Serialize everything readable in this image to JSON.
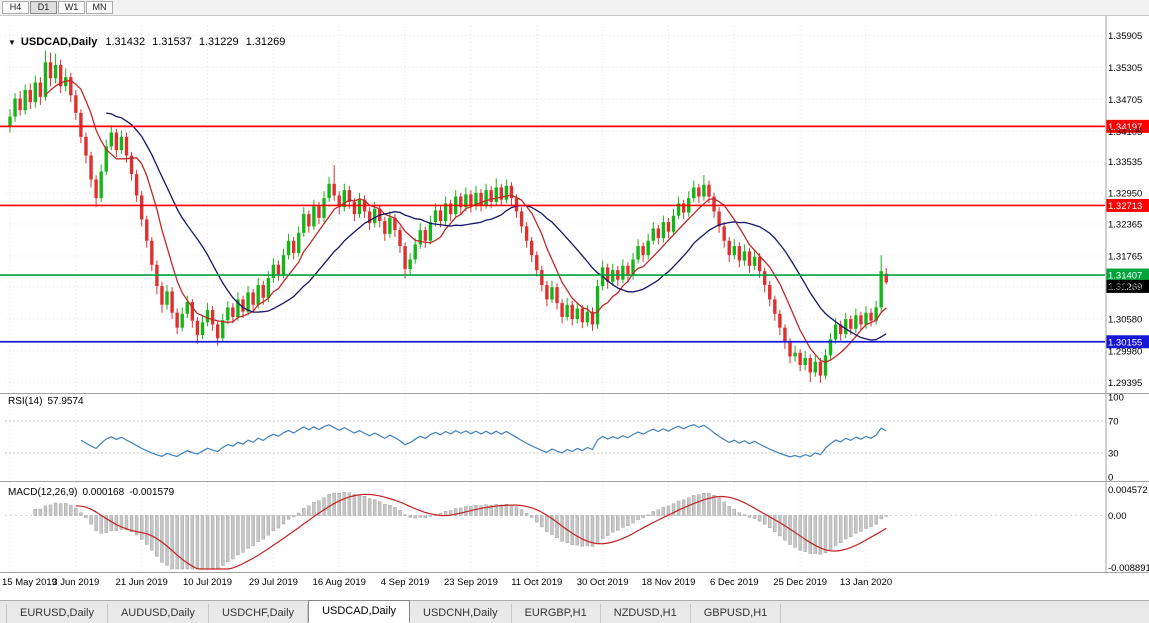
{
  "toolbar": {
    "timeframes": [
      {
        "label": "H4",
        "active": false
      },
      {
        "label": "D1",
        "active": true
      },
      {
        "label": "W1",
        "active": false
      },
      {
        "label": "MN",
        "active": false
      }
    ]
  },
  "title": {
    "symbol": "USDCAD,Daily",
    "open": "1.31432",
    "high": "1.31537",
    "low": "1.31229",
    "close": "1.31269"
  },
  "chart_data": {
    "type": "candlestick",
    "symbol": "USDCAD",
    "timeframe": "Daily",
    "y_range": [
      1.2925,
      1.3608
    ],
    "y_axis": {
      "ticks": [
        "1.35905",
        "1.35305",
        "1.34705",
        "1.34105",
        "1.33535",
        "1.32950",
        "1.32365",
        "1.31765",
        "1.31180",
        "1.30580",
        "1.29980",
        "1.29395"
      ]
    },
    "x_axis": {
      "labels": [
        "15 May 2019",
        "3 Jun 2019",
        "21 Jun 2019",
        "10 Jul 2019",
        "29 Jul 2019",
        "16 Aug 2019",
        "4 Sep 2019",
        "23 Sep 2019",
        "11 Oct 2019",
        "30 Oct 2019",
        "18 Nov 2019",
        "6 Dec 2019",
        "25 Dec 2019",
        "13 Jan 2020"
      ],
      "bars_per_label": 13
    },
    "colors": {
      "up": "#17B417",
      "down": "#DF3030",
      "grid": "#E2E2E2",
      "ma_fast": "#C22828",
      "ma_slow": "#16166B",
      "axis_text": "#000000",
      "background": "#FFFFFF"
    },
    "hlines": [
      {
        "price": 1.34197,
        "label": "1.34197",
        "color": "#FF0000"
      },
      {
        "price": 1.32713,
        "label": "1.32713",
        "color": "#FF0000"
      },
      {
        "price": 1.31407,
        "label": "1.31407",
        "color": "#00A33C"
      },
      {
        "price": 1.30155,
        "label": "1.30155",
        "color": "#1515D8"
      }
    ],
    "last_price": {
      "price": 1.31269,
      "label": "1.31269",
      "bg": "#000000",
      "fg": "#FFFFFF"
    },
    "indicators": {
      "rsi": {
        "label": "RSI(14)",
        "value": "57.9574",
        "color": "#4080C0",
        "axis_labels": [
          "100",
          "70",
          "30",
          "0"
        ],
        "level_lines": [
          70,
          30
        ]
      },
      "macd": {
        "label": "MACD(12,26,9)",
        "value_main": "0.000168",
        "value_signal": "-0.001579",
        "axis_labels": [
          "0.004572",
          "0.00",
          "-0.008891"
        ],
        "range": [
          -0.008891,
          0.004572
        ],
        "hist_color": "#C6C6C6",
        "hist_edge": "#9A9A9A",
        "signal_color": "#C42020"
      }
    },
    "candles": [
      [
        1.342,
        1.3452,
        1.3408,
        1.3438
      ],
      [
        1.3438,
        1.3482,
        1.3428,
        1.3472
      ],
      [
        1.3472,
        1.3486,
        1.344,
        1.345
      ],
      [
        1.345,
        1.3498,
        1.3442,
        1.3488
      ],
      [
        1.3488,
        1.35,
        1.3452,
        1.3465
      ],
      [
        1.3465,
        1.3515,
        1.3455,
        1.3502
      ],
      [
        1.3502,
        1.3512,
        1.346,
        1.3475
      ],
      [
        1.3475,
        1.3562,
        1.3468,
        1.354
      ],
      [
        1.354,
        1.3558,
        1.3495,
        1.351
      ],
      [
        1.351,
        1.3556,
        1.35,
        1.3535
      ],
      [
        1.3535,
        1.3545,
        1.3482,
        1.3495
      ],
      [
        1.3495,
        1.3528,
        1.3485,
        1.3512
      ],
      [
        1.3512,
        1.352,
        1.3465,
        1.3478
      ],
      [
        1.3478,
        1.3488,
        1.3432,
        1.3445
      ],
      [
        1.3445,
        1.3452,
        1.3388,
        1.34
      ],
      [
        1.34,
        1.3408,
        1.335,
        1.3365
      ],
      [
        1.3365,
        1.3372,
        1.3305,
        1.332
      ],
      [
        1.332,
        1.3328,
        1.3268,
        1.3285
      ],
      [
        1.3285,
        1.3348,
        1.3278,
        1.3335
      ],
      [
        1.3335,
        1.3395,
        1.3328,
        1.3382
      ],
      [
        1.3382,
        1.3422,
        1.3375,
        1.3408
      ],
      [
        1.3408,
        1.3415,
        1.3362,
        1.3375
      ],
      [
        1.3375,
        1.3412,
        1.3368,
        1.34
      ],
      [
        1.34,
        1.3408,
        1.3352,
        1.3365
      ],
      [
        1.3365,
        1.3372,
        1.3318,
        1.333
      ],
      [
        1.333,
        1.3338,
        1.3278,
        1.329
      ],
      [
        1.329,
        1.3298,
        1.3232,
        1.3245
      ],
      [
        1.3245,
        1.3252,
        1.3192,
        1.3205
      ],
      [
        1.3205,
        1.3212,
        1.3148,
        1.316
      ],
      [
        1.316,
        1.3168,
        1.3105,
        1.312
      ],
      [
        1.312,
        1.3128,
        1.307,
        1.3085
      ],
      [
        1.3085,
        1.3122,
        1.3076,
        1.311
      ],
      [
        1.311,
        1.3118,
        1.3058,
        1.307
      ],
      [
        1.307,
        1.3078,
        1.303,
        1.3042
      ],
      [
        1.3042,
        1.308,
        1.3035,
        1.3068
      ],
      [
        1.3068,
        1.3102,
        1.306,
        1.309
      ],
      [
        1.309,
        1.3096,
        1.3042,
        1.3055
      ],
      [
        1.3055,
        1.3062,
        1.3012,
        1.3028
      ],
      [
        1.3028,
        1.3064,
        1.302,
        1.3052
      ],
      [
        1.3052,
        1.3088,
        1.3045,
        1.3075
      ],
      [
        1.3075,
        1.3082,
        1.3036,
        1.3048
      ],
      [
        1.3048,
        1.3055,
        1.3008,
        1.3022
      ],
      [
        1.3022,
        1.3068,
        1.3015,
        1.3056
      ],
      [
        1.3056,
        1.3092,
        1.3048,
        1.308
      ],
      [
        1.308,
        1.3088,
        1.305,
        1.3062
      ],
      [
        1.3062,
        1.3108,
        1.3055,
        1.3095
      ],
      [
        1.3095,
        1.3102,
        1.306,
        1.3072
      ],
      [
        1.3072,
        1.312,
        1.3065,
        1.3108
      ],
      [
        1.3108,
        1.3115,
        1.3072,
        1.3085
      ],
      [
        1.3085,
        1.3135,
        1.3078,
        1.3122
      ],
      [
        1.3122,
        1.313,
        1.3085,
        1.3098
      ],
      [
        1.3098,
        1.3148,
        1.309,
        1.3135
      ],
      [
        1.3135,
        1.3172,
        1.3126,
        1.316
      ],
      [
        1.316,
        1.3168,
        1.313,
        1.3142
      ],
      [
        1.3142,
        1.319,
        1.3135,
        1.3178
      ],
      [
        1.3178,
        1.3218,
        1.317,
        1.3205
      ],
      [
        1.3205,
        1.3212,
        1.317,
        1.3182
      ],
      [
        1.3182,
        1.3232,
        1.3175,
        1.322
      ],
      [
        1.322,
        1.3268,
        1.3212,
        1.3255
      ],
      [
        1.3255,
        1.3262,
        1.322,
        1.3232
      ],
      [
        1.3232,
        1.3282,
        1.3225,
        1.327
      ],
      [
        1.327,
        1.3278,
        1.3236,
        1.3248
      ],
      [
        1.3248,
        1.3298,
        1.324,
        1.3285
      ],
      [
        1.3285,
        1.3325,
        1.3278,
        1.3312
      ],
      [
        1.3312,
        1.3347,
        1.328,
        1.329
      ],
      [
        1.329,
        1.3298,
        1.3255,
        1.3268
      ],
      [
        1.3268,
        1.3312,
        1.326,
        1.33
      ],
      [
        1.33,
        1.3308,
        1.3265,
        1.3278
      ],
      [
        1.3278,
        1.3285,
        1.3242,
        1.3255
      ],
      [
        1.3255,
        1.3295,
        1.3248,
        1.3282
      ],
      [
        1.3282,
        1.329,
        1.3248,
        1.326
      ],
      [
        1.326,
        1.3268,
        1.3225,
        1.3238
      ],
      [
        1.3238,
        1.3278,
        1.323,
        1.3265
      ],
      [
        1.3265,
        1.3272,
        1.323,
        1.3242
      ],
      [
        1.3242,
        1.325,
        1.3205,
        1.3218
      ],
      [
        1.3218,
        1.326,
        1.321,
        1.3248
      ],
      [
        1.3248,
        1.3255,
        1.3212,
        1.3225
      ],
      [
        1.3225,
        1.3232,
        1.3182,
        1.3195
      ],
      [
        1.3195,
        1.3202,
        1.3134,
        1.3152
      ],
      [
        1.3152,
        1.3182,
        1.3142,
        1.317
      ],
      [
        1.317,
        1.321,
        1.3162,
        1.3198
      ],
      [
        1.3198,
        1.3238,
        1.319,
        1.3225
      ],
      [
        1.3225,
        1.3232,
        1.3192,
        1.3205
      ],
      [
        1.3205,
        1.3252,
        1.3198,
        1.324
      ],
      [
        1.324,
        1.3275,
        1.3232,
        1.3262
      ],
      [
        1.3262,
        1.327,
        1.323,
        1.3242
      ],
      [
        1.3242,
        1.3288,
        1.3235,
        1.3275
      ],
      [
        1.3275,
        1.3282,
        1.3242,
        1.3255
      ],
      [
        1.3255,
        1.33,
        1.3248,
        1.3288
      ],
      [
        1.3288,
        1.3295,
        1.3255,
        1.3268
      ],
      [
        1.3268,
        1.3305,
        1.326,
        1.3292
      ],
      [
        1.3292,
        1.33,
        1.3258,
        1.327
      ],
      [
        1.327,
        1.3308,
        1.3262,
        1.3295
      ],
      [
        1.3295,
        1.3302,
        1.326,
        1.3272
      ],
      [
        1.3272,
        1.3312,
        1.3265,
        1.33
      ],
      [
        1.33,
        1.3308,
        1.3266,
        1.3278
      ],
      [
        1.3278,
        1.3322,
        1.327,
        1.3305
      ],
      [
        1.3305,
        1.3312,
        1.327,
        1.3282
      ],
      [
        1.3282,
        1.332,
        1.3275,
        1.3308
      ],
      [
        1.3308,
        1.3315,
        1.3272,
        1.3285
      ],
      [
        1.3285,
        1.3292,
        1.3248,
        1.326
      ],
      [
        1.326,
        1.3268,
        1.322,
        1.3232
      ],
      [
        1.3232,
        1.324,
        1.3192,
        1.3205
      ],
      [
        1.3205,
        1.3212,
        1.3165,
        1.3178
      ],
      [
        1.3178,
        1.3185,
        1.3138,
        1.315
      ],
      [
        1.315,
        1.3158,
        1.311,
        1.3122
      ],
      [
        1.3122,
        1.313,
        1.3082,
        1.3095
      ],
      [
        1.3095,
        1.313,
        1.3088,
        1.3118
      ],
      [
        1.3118,
        1.3125,
        1.3076,
        1.3088
      ],
      [
        1.3088,
        1.3095,
        1.305,
        1.3062
      ],
      [
        1.3062,
        1.3098,
        1.3055,
        1.3085
      ],
      [
        1.3085,
        1.3092,
        1.3046,
        1.3058
      ],
      [
        1.3058,
        1.309,
        1.305,
        1.3078
      ],
      [
        1.3078,
        1.3085,
        1.3041,
        1.3052
      ],
      [
        1.3052,
        1.3084,
        1.3044,
        1.3072
      ],
      [
        1.3072,
        1.308,
        1.3036,
        1.3048
      ],
      [
        1.3048,
        1.3132,
        1.304,
        1.312
      ],
      [
        1.312,
        1.3168,
        1.3112,
        1.3155
      ],
      [
        1.3155,
        1.3162,
        1.3115,
        1.3128
      ],
      [
        1.3128,
        1.3162,
        1.312,
        1.315
      ],
      [
        1.315,
        1.3158,
        1.312,
        1.3132
      ],
      [
        1.3132,
        1.317,
        1.3125,
        1.3158
      ],
      [
        1.3158,
        1.3165,
        1.3128,
        1.314
      ],
      [
        1.314,
        1.3182,
        1.3132,
        1.317
      ],
      [
        1.317,
        1.3208,
        1.3162,
        1.3195
      ],
      [
        1.3195,
        1.3202,
        1.3165,
        1.3178
      ],
      [
        1.3178,
        1.3218,
        1.317,
        1.3205
      ],
      [
        1.3205,
        1.324,
        1.3198,
        1.3228
      ],
      [
        1.3228,
        1.3235,
        1.3198,
        1.321
      ],
      [
        1.321,
        1.3252,
        1.3202,
        1.324
      ],
      [
        1.324,
        1.3248,
        1.321,
        1.3222
      ],
      [
        1.3222,
        1.3265,
        1.3215,
        1.3252
      ],
      [
        1.3252,
        1.3288,
        1.3245,
        1.3275
      ],
      [
        1.3275,
        1.3282,
        1.3246,
        1.3258
      ],
      [
        1.3258,
        1.3298,
        1.325,
        1.3285
      ],
      [
        1.3285,
        1.3318,
        1.3278,
        1.3305
      ],
      [
        1.3305,
        1.3312,
        1.3276,
        1.3288
      ],
      [
        1.3288,
        1.3328,
        1.328,
        1.331
      ],
      [
        1.331,
        1.3318,
        1.3276,
        1.3288
      ],
      [
        1.3288,
        1.3295,
        1.3248,
        1.326
      ],
      [
        1.326,
        1.3268,
        1.322,
        1.3232
      ],
      [
        1.3232,
        1.324,
        1.3192,
        1.3205
      ],
      [
        1.3205,
        1.3212,
        1.3165,
        1.3178
      ],
      [
        1.3178,
        1.3208,
        1.317,
        1.3195
      ],
      [
        1.3195,
        1.3202,
        1.3155,
        1.3168
      ],
      [
        1.3168,
        1.3198,
        1.3158,
        1.3185
      ],
      [
        1.3185,
        1.3192,
        1.3145,
        1.3158
      ],
      [
        1.3158,
        1.3188,
        1.315,
        1.3175
      ],
      [
        1.3175,
        1.3182,
        1.3135,
        1.3148
      ],
      [
        1.3148,
        1.3155,
        1.3108,
        1.3122
      ],
      [
        1.3122,
        1.313,
        1.3082,
        1.3095
      ],
      [
        1.3095,
        1.3102,
        1.3055,
        1.3068
      ],
      [
        1.3068,
        1.3075,
        1.3028,
        1.3042
      ],
      [
        1.3042,
        1.3048,
        1.3002,
        1.3015
      ],
      [
        1.3015,
        1.3022,
        1.2975,
        1.2988
      ],
      [
        1.2988,
        1.3008,
        1.2978,
        1.2995
      ],
      [
        1.2995,
        1.3002,
        1.296,
        1.2972
      ],
      [
        1.2972,
        1.2998,
        1.2962,
        1.2985
      ],
      [
        1.2985,
        1.2992,
        1.294,
        1.2958
      ],
      [
        1.2958,
        1.299,
        1.295,
        1.2978
      ],
      [
        1.2978,
        1.2985,
        1.2938,
        1.2952
      ],
      [
        1.2952,
        1.3002,
        1.2945,
        1.299
      ],
      [
        1.299,
        1.3032,
        1.2982,
        1.302
      ],
      [
        1.302,
        1.306,
        1.3012,
        1.3048
      ],
      [
        1.3048,
        1.3055,
        1.3018,
        1.303
      ],
      [
        1.303,
        1.307,
        1.3022,
        1.3058
      ],
      [
        1.3058,
        1.3065,
        1.3028,
        1.304
      ],
      [
        1.304,
        1.3078,
        1.3032,
        1.3065
      ],
      [
        1.3065,
        1.3072,
        1.3036,
        1.3048
      ],
      [
        1.3048,
        1.3082,
        1.304,
        1.307
      ],
      [
        1.307,
        1.3078,
        1.3044,
        1.3055
      ],
      [
        1.3055,
        1.3092,
        1.3048,
        1.308
      ],
      [
        1.308,
        1.3178,
        1.3072,
        1.3148
      ],
      [
        1.31432,
        1.31537,
        1.31229,
        1.31269
      ]
    ]
  },
  "tabs": {
    "items": [
      {
        "label": "EURUSD,Daily",
        "active": false
      },
      {
        "label": "AUDUSD,Daily",
        "active": false
      },
      {
        "label": "USDCHF,Daily",
        "active": false
      },
      {
        "label": "USDCAD,Daily",
        "active": true
      },
      {
        "label": "USDCNH,Daily",
        "active": false
      },
      {
        "label": "EURGBP,H1",
        "active": false
      },
      {
        "label": "NZDUSD,H1",
        "active": false
      },
      {
        "label": "GBPUSD,H1",
        "active": false
      }
    ]
  }
}
